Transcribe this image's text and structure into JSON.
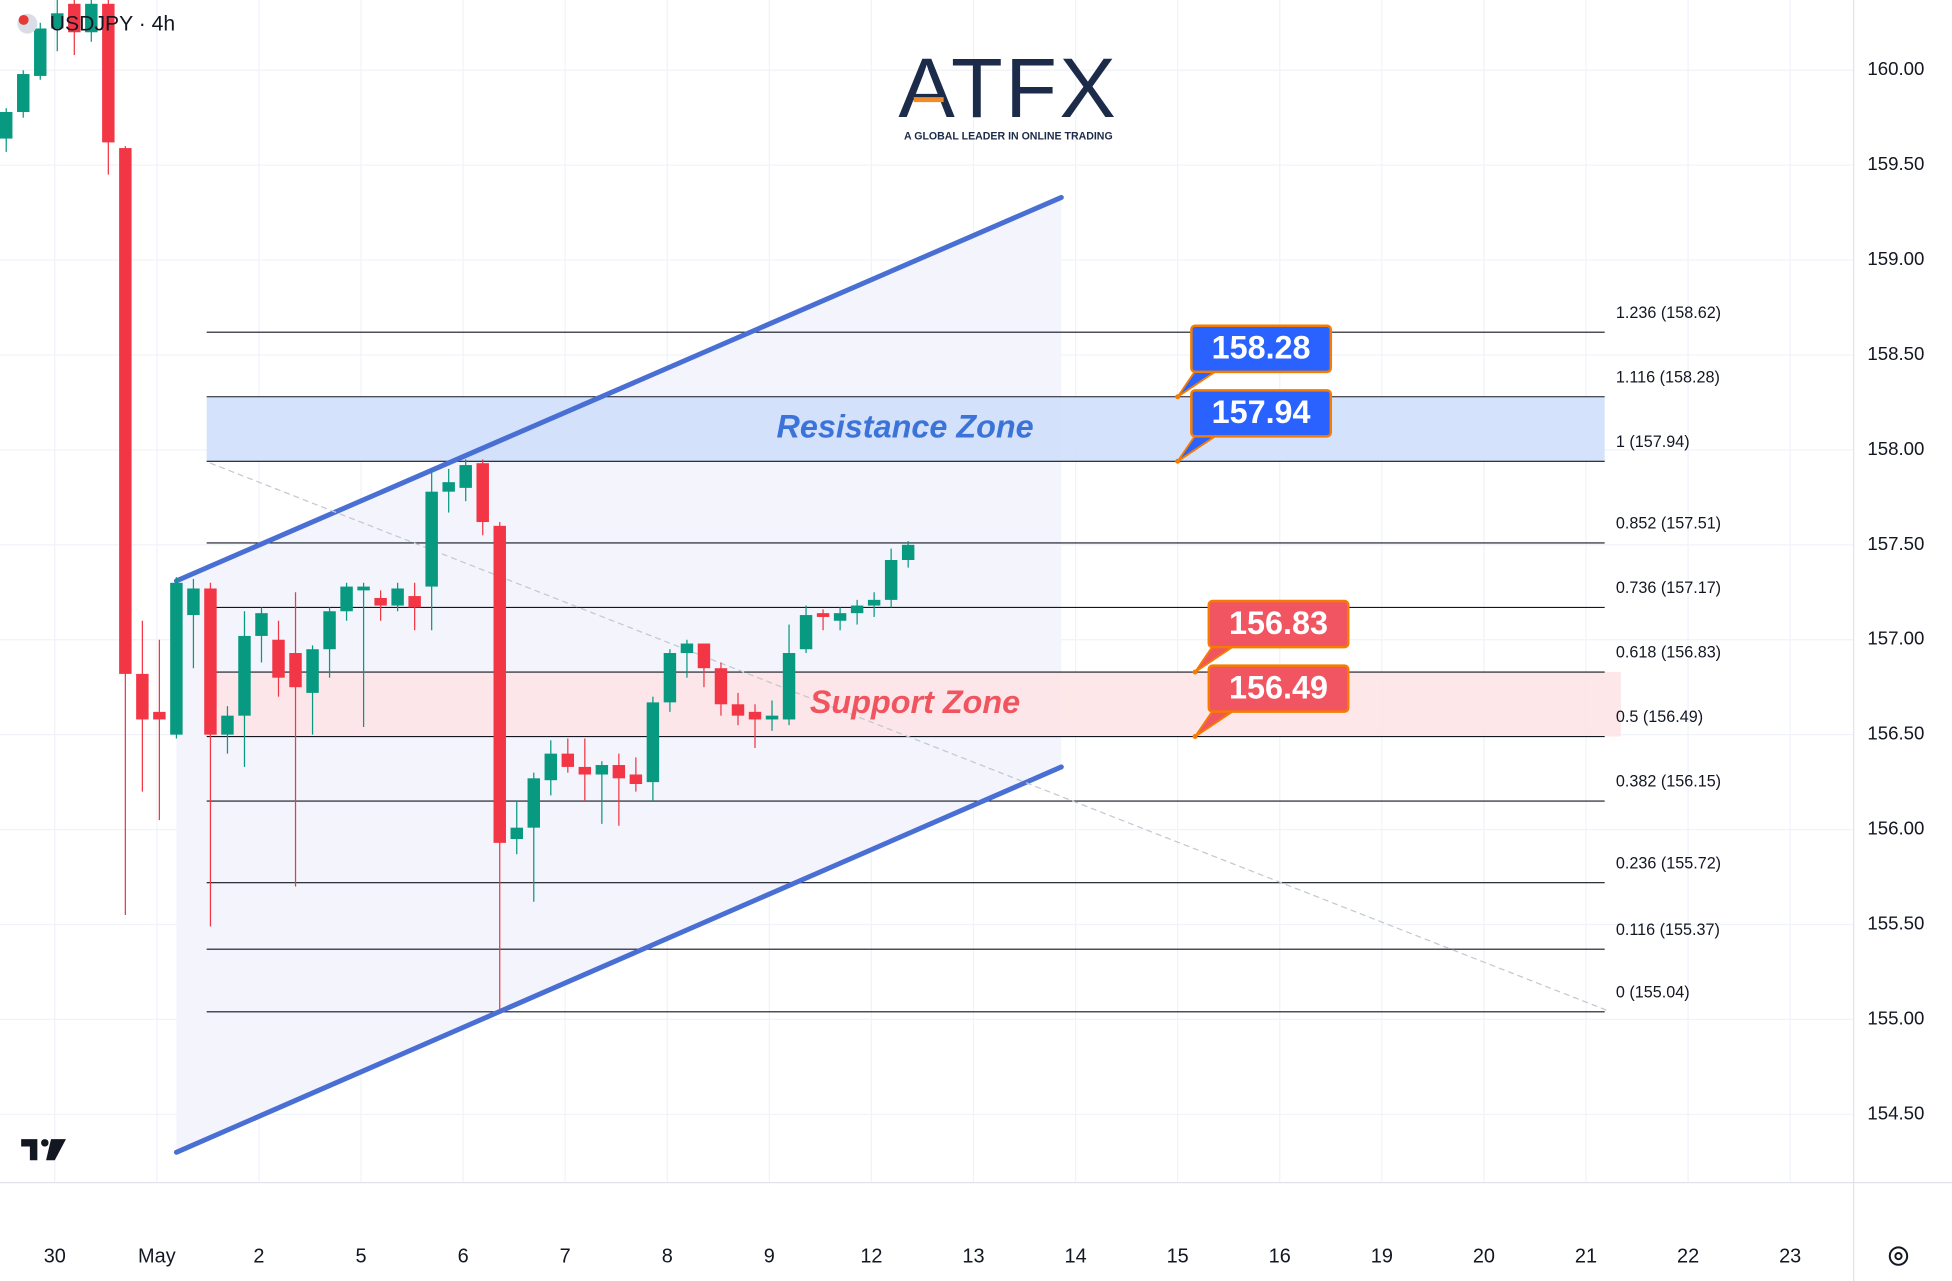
{
  "chart_data": {
    "type": "candlestick",
    "title": "USDJPY · 4h",
    "logo": {
      "name": "ATFX",
      "tagline": "A GLOBAL LEADER IN ONLINE TRADING"
    },
    "xticks": [
      "30",
      "May",
      "2",
      "5",
      "6",
      "7",
      "8",
      "9",
      "12",
      "13",
      "14",
      "15",
      "16",
      "19",
      "20",
      "21",
      "22",
      "23"
    ],
    "series": [
      {
        "up_color": "#089981",
        "down_color": "#f23645",
        "open": [
          159.64,
          159.78,
          159.97,
          160.22,
          160.35,
          160.2,
          160.35,
          159.59,
          156.82,
          156.62,
          156.5,
          157.13,
          157.27,
          156.5,
          156.6,
          157.02,
          157.0,
          156.93,
          156.72,
          156.95,
          157.15,
          157.26,
          157.22,
          157.18,
          157.23,
          157.28,
          157.78,
          157.8,
          157.93,
          157.6,
          155.95,
          156.01,
          156.26,
          156.4,
          156.33,
          156.29,
          156.34,
          156.29,
          156.25,
          156.67,
          156.93,
          156.98,
          156.85,
          156.66,
          156.62,
          156.58,
          156.58,
          156.95,
          157.14,
          157.1,
          157.14,
          157.18,
          157.21,
          157.42
        ],
        "high": [
          159.8,
          160.0,
          160.25,
          160.4,
          160.45,
          160.4,
          160.45,
          159.6,
          157.1,
          157.0,
          157.33,
          157.32,
          157.3,
          156.65,
          157.15,
          157.17,
          157.1,
          157.25,
          156.97,
          157.17,
          157.3,
          157.3,
          157.26,
          157.3,
          157.3,
          157.9,
          157.9,
          157.95,
          157.95,
          157.62,
          156.15,
          156.3,
          156.47,
          156.48,
          156.48,
          156.36,
          156.4,
          156.38,
          156.7,
          156.95,
          157.0,
          156.98,
          156.88,
          156.72,
          156.66,
          156.68,
          157.08,
          157.18,
          157.16,
          157.17,
          157.21,
          157.25,
          157.48,
          157.52
        ],
        "low": [
          159.57,
          159.75,
          159.95,
          160.1,
          160.08,
          160.15,
          159.45,
          155.55,
          156.2,
          156.05,
          156.48,
          156.85,
          155.49,
          156.4,
          156.33,
          156.88,
          156.7,
          155.7,
          156.5,
          156.8,
          157.1,
          156.54,
          157.1,
          157.15,
          157.05,
          157.05,
          157.67,
          157.73,
          157.55,
          155.05,
          155.87,
          155.62,
          156.18,
          156.3,
          156.15,
          156.03,
          156.02,
          156.2,
          156.15,
          156.62,
          156.8,
          156.75,
          156.6,
          156.55,
          156.43,
          156.52,
          156.55,
          156.93,
          157.05,
          157.05,
          157.08,
          157.12,
          157.17,
          157.38
        ],
        "close": [
          159.78,
          159.98,
          160.22,
          160.3,
          160.2,
          160.35,
          159.62,
          156.82,
          156.58,
          156.58,
          157.3,
          157.27,
          156.5,
          156.6,
          157.02,
          157.14,
          156.8,
          156.75,
          156.95,
          157.15,
          157.28,
          157.28,
          157.18,
          157.27,
          157.17,
          157.78,
          157.83,
          157.92,
          157.62,
          155.93,
          156.01,
          156.27,
          156.4,
          156.33,
          156.29,
          156.34,
          156.27,
          156.24,
          156.67,
          156.93,
          156.98,
          156.85,
          156.66,
          156.6,
          156.58,
          156.6,
          156.93,
          157.13,
          157.12,
          157.14,
          157.18,
          157.21,
          157.42,
          157.5
        ]
      }
    ],
    "ylim": [
      154.14,
      160.37
    ],
    "yticks": [
      {
        "value": 160,
        "label": "160.00"
      },
      {
        "value": 159.5,
        "label": "159.50"
      },
      {
        "value": 159,
        "label": "159.00"
      },
      {
        "value": 158.5,
        "label": "158.50"
      },
      {
        "value": 158,
        "label": "158.00"
      },
      {
        "value": 157.5,
        "label": "157.50"
      },
      {
        "value": 157,
        "label": "157.00"
      },
      {
        "value": 156.5,
        "label": "156.50"
      },
      {
        "value": 156,
        "label": "156.00"
      },
      {
        "value": 155.5,
        "label": "155.50"
      },
      {
        "value": 155,
        "label": "155.00"
      },
      {
        "value": 154.5,
        "label": "154.50"
      }
    ],
    "grid": true,
    "fib_levels": [
      {
        "label": "1.236 (158.62)",
        "value": 158.62
      },
      {
        "label": "1.116 (158.28)",
        "value": 158.28
      },
      {
        "label": "1 (157.94)",
        "value": 157.94
      },
      {
        "label": "0.852 (157.51)",
        "value": 157.51
      },
      {
        "label": "0.736 (157.17)",
        "value": 157.17
      },
      {
        "label": "0.618 (156.83)",
        "value": 156.83
      },
      {
        "label": "0.5 (156.49)",
        "value": 156.49
      },
      {
        "label": "0.382 (156.15)",
        "value": 156.15
      },
      {
        "label": "0.236 (155.72)",
        "value": 155.72
      },
      {
        "label": "0.116 (155.37)",
        "value": 155.37
      },
      {
        "label": "0 (155.04)",
        "value": 155.04
      }
    ],
    "zones": [
      {
        "label": "Resistance Zone",
        "low": 157.94,
        "high": 158.28,
        "color": "#cfdffb",
        "text_color": "#3b73d8"
      },
      {
        "label": "Support Zone",
        "low": 156.49,
        "high": 156.83,
        "color": "#fde4e7",
        "text_color": "#f0555f"
      }
    ],
    "callouts": [
      {
        "value": 158.28,
        "color": "#2962ff"
      },
      {
        "value": 157.94,
        "color": "#2962ff"
      },
      {
        "value": 156.83,
        "color": "#f05561"
      },
      {
        "value": 156.49,
        "color": "#f05561"
      }
    ],
    "trendlines": [
      {
        "x": [
          10,
          62
        ],
        "values": [
          157.31,
          159.33
        ],
        "color": "#4a6fd4"
      },
      {
        "x": [
          10,
          62
        ],
        "values": [
          154.3,
          156.33
        ],
        "color": "#4a6fd4"
      },
      {
        "x": [
          12,
          94
        ],
        "values": [
          157.93,
          155.05
        ],
        "color": "#c4c8d0",
        "dashed": true
      }
    ]
  }
}
